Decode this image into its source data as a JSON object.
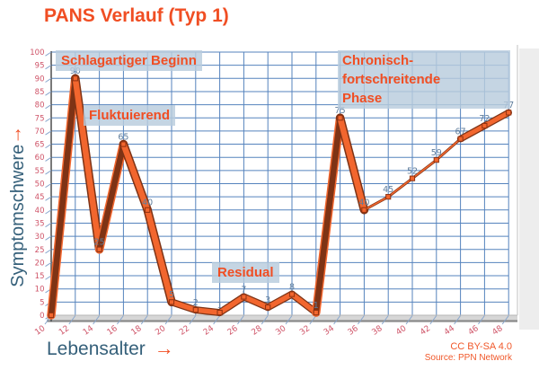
{
  "chart_data": {
    "type": "line",
    "title": "PANS Verlauf (Typ 1)",
    "xlabel": "Lebensalter",
    "ylabel": "Symptomschwere",
    "x_arrow": "→",
    "y_arrow": "↑",
    "x": [
      10,
      12,
      14,
      16,
      18,
      20,
      22,
      24,
      26,
      28,
      30,
      32,
      34,
      36,
      38,
      40,
      42,
      44,
      46,
      48
    ],
    "values": [
      0,
      90,
      25,
      65,
      40,
      5,
      2,
      1,
      7,
      3,
      8,
      1,
      75,
      40,
      45,
      52,
      59,
      67,
      72,
      77
    ],
    "xlim": [
      10,
      48
    ],
    "ylim": [
      0,
      100
    ],
    "x_tick_step": 2,
    "y_tick_step": 5,
    "grid": true,
    "legend": "none",
    "annotations": {
      "onset": "Schlagartiger Beginn",
      "fluctuating": "Fluktuierend",
      "residual": "Residual",
      "chronic": [
        "Chronisch-fortschreitende",
        "Phase"
      ]
    }
  },
  "footer": {
    "license": "CC BY-SA 4.0",
    "source": "Source: PPN Network"
  },
  "colors": {
    "accent_orange": "#f04e23",
    "line_orange": "#f2662e",
    "line_shadow": "#7e3315",
    "marker_stroke": "#8f3110",
    "grid_blue": "#5583bd",
    "tick_blue": "#88a6cd",
    "tick_label_pink": "#cf5468",
    "value_label_blue": "#5f7d9c",
    "annotation_bg": "#b8ccdd",
    "axis_title_blue": "#35607a",
    "floor_gray": "#d6d6d6"
  }
}
